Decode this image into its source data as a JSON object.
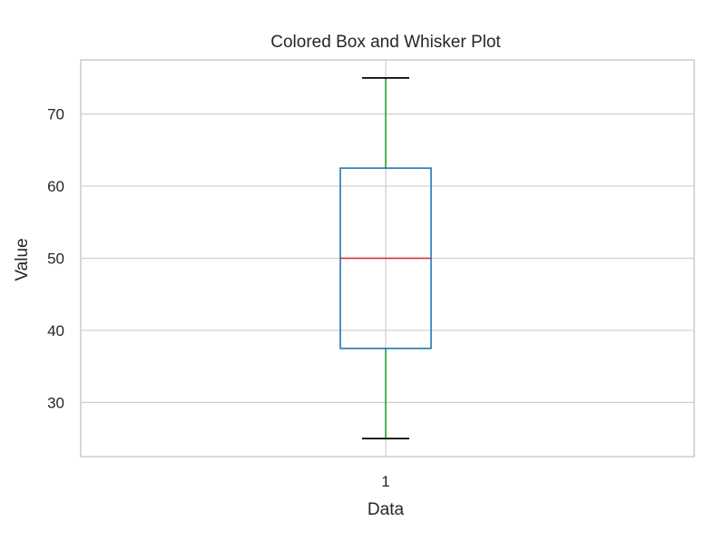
{
  "chart_data": {
    "type": "box",
    "title": "Colored Box and Whisker Plot",
    "xlabel": "Data",
    "ylabel": "Value",
    "categories": [
      "1"
    ],
    "box": {
      "category": "1",
      "whisker_low": 25,
      "q1": 37.5,
      "median": 50,
      "q3": 62.5,
      "whisker_high": 75
    },
    "ylim": [
      22.5,
      77.5
    ],
    "yticks": [
      30,
      40,
      50,
      60,
      70
    ],
    "grid": true,
    "legend": "none",
    "colors": {
      "box": "#1f77b4",
      "median": "#d62728",
      "whiskers": "#2ca02c",
      "caps": "#000000",
      "grid": "#cfcfcf",
      "frame": "#cccccc"
    }
  }
}
